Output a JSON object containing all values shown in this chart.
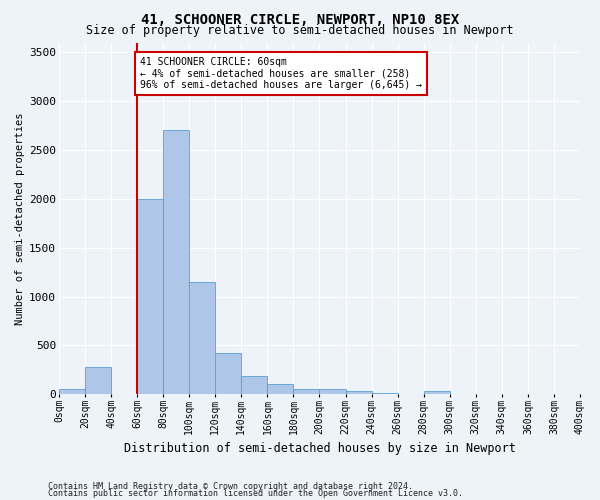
{
  "title": "41, SCHOONER CIRCLE, NEWPORT, NP10 8EX",
  "subtitle": "Size of property relative to semi-detached houses in Newport",
  "xlabel": "Distribution of semi-detached houses by size in Newport",
  "ylabel": "Number of semi-detached properties",
  "footer_line1": "Contains HM Land Registry data © Crown copyright and database right 2024.",
  "footer_line2": "Contains public sector information licensed under the Open Government Licence v3.0.",
  "annotation_title": "41 SCHOONER CIRCLE: 60sqm",
  "annotation_line2": "← 4% of semi-detached houses are smaller (258)",
  "annotation_line3": "96% of semi-detached houses are larger (6,645) →",
  "property_size": 60,
  "bin_edges": [
    0,
    20,
    40,
    60,
    80,
    100,
    120,
    140,
    160,
    180,
    200,
    220,
    240,
    260,
    280,
    300,
    320,
    340,
    360,
    380,
    400
  ],
  "bar_values": [
    50,
    280,
    0,
    2000,
    2700,
    1150,
    420,
    185,
    100,
    55,
    55,
    30,
    10,
    5,
    30,
    0,
    0,
    0,
    0,
    0
  ],
  "bar_color": "#aec6e8",
  "bar_edge_color": "#5a9fd4",
  "redline_color": "#cc0000",
  "annotation_box_color": "#cc0000",
  "bg_color": "#eef2f9",
  "ylim": [
    0,
    3600
  ],
  "yticks": [
    0,
    500,
    1000,
    1500,
    2000,
    2500,
    3000,
    3500
  ],
  "figwidth": 6.0,
  "figheight": 5.0,
  "dpi": 100
}
